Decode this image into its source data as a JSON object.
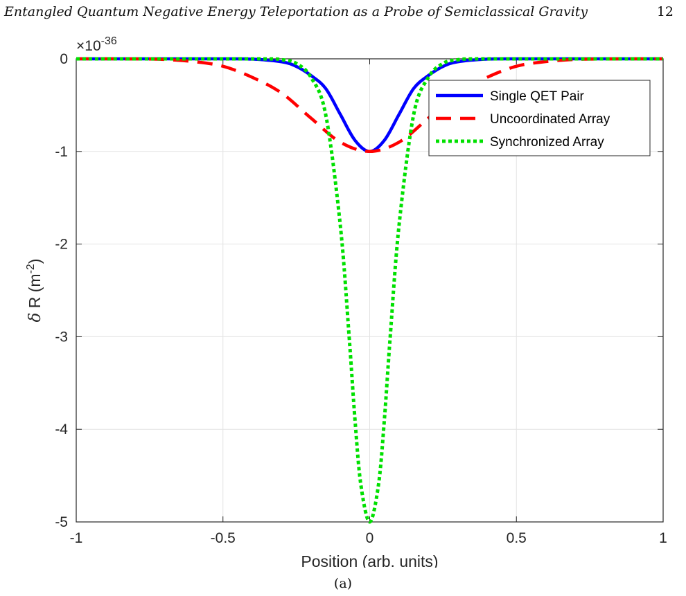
{
  "page": {
    "running_title": "Entangled Quantum Negative Energy Teleportation as a Probe of Semiclassical Gravity",
    "page_number": "12",
    "caption": "(a)"
  },
  "chart_data": {
    "type": "line",
    "title": "",
    "xlabel": "Position (arb. units)",
    "ylabel_prefix": "δ",
    "ylabel_main": " R (m",
    "ylabel_sup": "-2",
    "ylabel_suffix": ")",
    "y_exponent_base": "×10",
    "y_exponent_power": "-36",
    "xlim": [
      -1,
      1
    ],
    "ylim": [
      -5,
      0
    ],
    "xticks": [
      -1,
      -0.5,
      0,
      0.5,
      1
    ],
    "xtick_labels": [
      "-1",
      "-0.5",
      "0",
      "0.5",
      "1"
    ],
    "yticks": [
      0,
      -1,
      -2,
      -3,
      -4,
      -5
    ],
    "ytick_labels": [
      "0",
      "-1",
      "-2",
      "-3",
      "-4",
      "-5"
    ],
    "grid": true,
    "legend_position": "top-right",
    "series": [
      {
        "name": "Single QET Pair",
        "color": "#0000ff",
        "style": "solid",
        "x": [
          -1.0,
          -0.5,
          -0.4,
          -0.3,
          -0.25,
          -0.2,
          -0.15,
          -0.1,
          -0.05,
          0.0,
          0.05,
          0.1,
          0.15,
          0.2,
          0.25,
          0.3,
          0.4,
          0.5,
          1.0
        ],
        "y": [
          0,
          0,
          -0.003,
          -0.032,
          -0.082,
          -0.18,
          -0.32,
          -0.6,
          -0.88,
          -1.0,
          -0.88,
          -0.6,
          -0.32,
          -0.18,
          -0.082,
          -0.032,
          -0.003,
          0,
          0
        ]
      },
      {
        "name": "Uncoordinated Array",
        "color": "#ff0000",
        "style": "dashed",
        "x": [
          -1.0,
          -0.8,
          -0.7,
          -0.6,
          -0.5,
          -0.4,
          -0.3,
          -0.2,
          -0.1,
          0.0,
          0.1,
          0.2,
          0.3,
          0.4,
          0.5,
          0.6,
          0.7,
          0.8,
          1.0
        ],
        "y": [
          0,
          -0.001,
          -0.007,
          -0.03,
          -0.08,
          -0.2,
          -0.37,
          -0.64,
          -0.9,
          -1.0,
          -0.9,
          -0.64,
          -0.37,
          -0.2,
          -0.08,
          -0.03,
          -0.007,
          -0.001,
          0
        ]
      },
      {
        "name": "Synchronized Array",
        "color": "#00e000",
        "style": "dotted",
        "x": [
          -1.0,
          -0.4,
          -0.3,
          -0.25,
          -0.2,
          -0.15,
          -0.1,
          -0.07,
          -0.05,
          -0.03,
          0.0,
          0.03,
          0.05,
          0.07,
          0.1,
          0.15,
          0.2,
          0.25,
          0.3,
          0.4,
          1.0
        ],
        "y": [
          0,
          0,
          -0.01,
          -0.05,
          -0.2,
          -0.6,
          -1.8,
          -3.0,
          -3.9,
          -4.6,
          -5.0,
          -4.6,
          -3.9,
          -3.0,
          -1.8,
          -0.6,
          -0.2,
          -0.05,
          -0.01,
          0,
          0
        ]
      }
    ]
  }
}
